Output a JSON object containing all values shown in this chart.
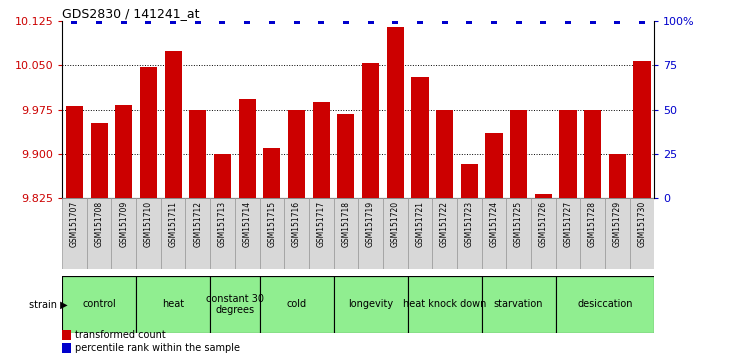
{
  "title": "GDS2830 / 141241_at",
  "samples": [
    "GSM151707",
    "GSM151708",
    "GSM151709",
    "GSM151710",
    "GSM151711",
    "GSM151712",
    "GSM151713",
    "GSM151714",
    "GSM151715",
    "GSM151716",
    "GSM151717",
    "GSM151718",
    "GSM151719",
    "GSM151720",
    "GSM151721",
    "GSM151722",
    "GSM151723",
    "GSM151724",
    "GSM151725",
    "GSM151726",
    "GSM151727",
    "GSM151728",
    "GSM151729",
    "GSM151730"
  ],
  "bar_values": [
    9.982,
    9.952,
    9.983,
    10.047,
    10.075,
    9.975,
    9.9,
    9.993,
    9.91,
    9.975,
    9.988,
    9.968,
    10.055,
    10.115,
    10.03,
    9.975,
    9.883,
    9.935,
    9.975,
    9.833,
    9.975,
    9.975,
    9.9,
    10.058
  ],
  "percentile_values": [
    100,
    100,
    100,
    100,
    100,
    100,
    100,
    100,
    100,
    100,
    100,
    100,
    100,
    100,
    100,
    100,
    100,
    100,
    100,
    100,
    100,
    100,
    100,
    100
  ],
  "bar_color": "#cc0000",
  "percentile_color": "#0000cc",
  "ylim_left": [
    9.825,
    10.125
  ],
  "ylim_right": [
    0,
    100
  ],
  "yticks_left": [
    9.825,
    9.9,
    9.975,
    10.05,
    10.125
  ],
  "yticks_right": [
    0,
    25,
    50,
    75,
    100
  ],
  "grid_values": [
    9.9,
    9.975,
    10.05
  ],
  "group_labels": [
    "control",
    "heat",
    "constant 30\ndegrees",
    "cold",
    "longevity",
    "heat knock down",
    "starvation",
    "desiccation"
  ],
  "group_ranges": [
    [
      0,
      2
    ],
    [
      3,
      5
    ],
    [
      6,
      7
    ],
    [
      8,
      10
    ],
    [
      11,
      13
    ],
    [
      14,
      16
    ],
    [
      17,
      19
    ],
    [
      20,
      23
    ]
  ],
  "strain_label": "strain",
  "legend_bar_label": "transformed count",
  "legend_pct_label": "percentile rank within the sample"
}
